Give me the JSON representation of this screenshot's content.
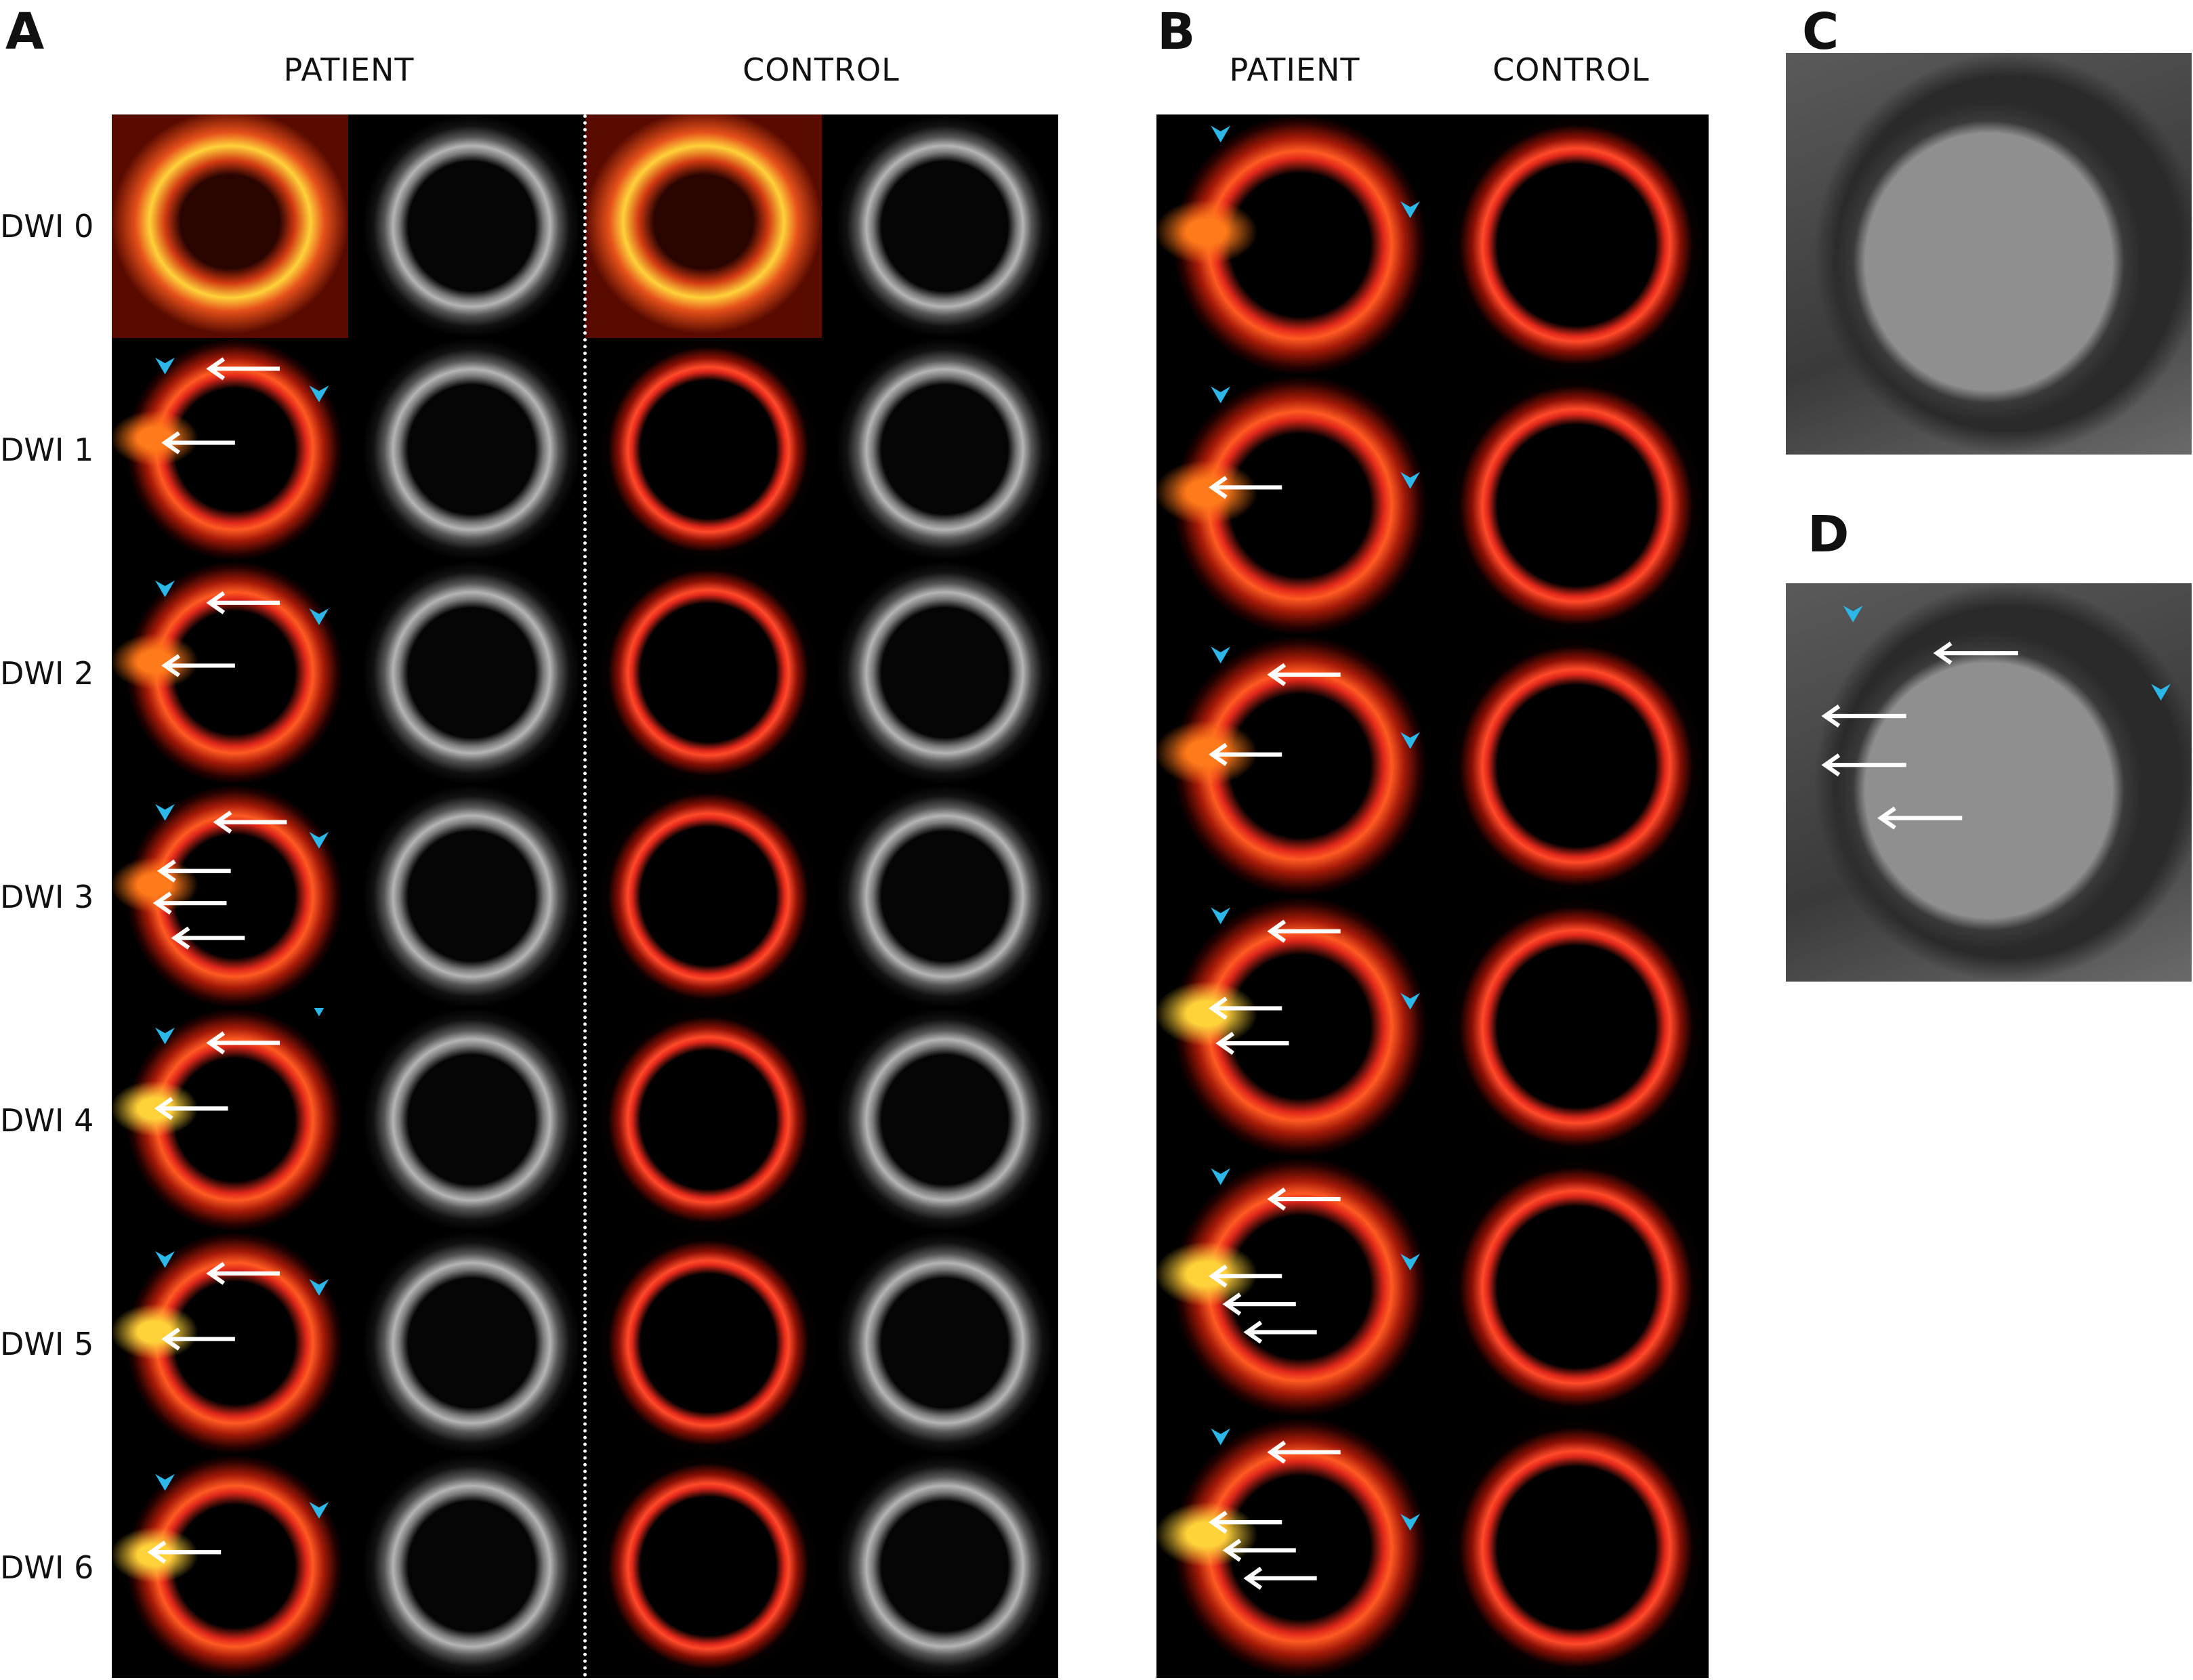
{
  "panels": {
    "A": {
      "letter": "A",
      "headers": [
        "PATIENT",
        "CONTROL"
      ],
      "rows": [
        "DWI 0",
        "DWI 1",
        "DWI 2",
        "DWI 3",
        "DWI 4",
        "DWI 5",
        "DWI 6"
      ]
    },
    "B": {
      "letter": "B",
      "headers": [
        "PATIENT",
        "CONTROL"
      ]
    },
    "C": {
      "letter": "C"
    },
    "D": {
      "letter": "D"
    }
  },
  "colors": {
    "heatmap": "#e0281a",
    "heatmap_hot": "#ffd23a",
    "grayscale": "#9a9a9a",
    "arrowhead": "#2bb7e8",
    "arrow": "#ffffff"
  }
}
